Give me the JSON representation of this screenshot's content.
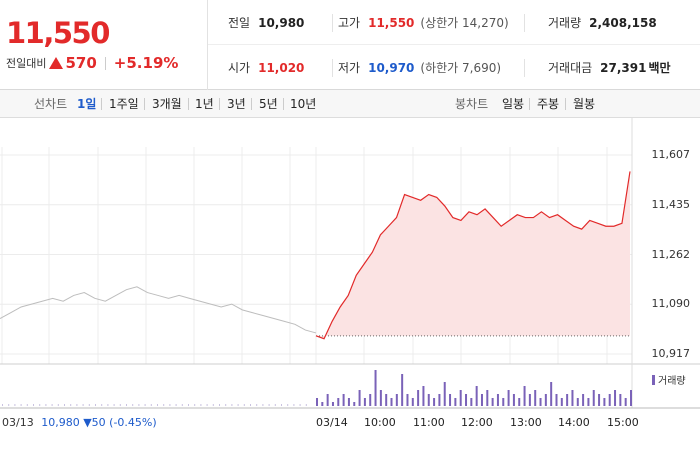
{
  "quote": {
    "price": "11,550",
    "change_label": "전일대비",
    "change": "570",
    "change_pct": "+5.19%",
    "prev_close_label": "전일",
    "prev_close": "10,980",
    "high_label": "고가",
    "high": "11,550",
    "upper_limit": "(상한가 14,270)",
    "volume_label": "거래량",
    "volume": "2,408,158",
    "open_label": "시가",
    "open": "11,020",
    "low_label": "저가",
    "low": "10,970",
    "lower_limit": "(하한가 7,690)",
    "value_label": "거래대금",
    "value": "27,391",
    "value_unit": "백만"
  },
  "toolbar": {
    "line_label": "선차트",
    "ranges": [
      "1일",
      "1주일",
      "3개월",
      "1년",
      "3년",
      "5년",
      "10년"
    ],
    "active_range": "1일",
    "candle_label": "봉차트",
    "candles": [
      "일봉",
      "주봉",
      "월봉"
    ]
  },
  "colors": {
    "up": "#e22a2a",
    "down": "#1e5bcb",
    "prev_line": "#bdbdbd",
    "fill": "#fbe3e3",
    "volume": "#7a62b8"
  },
  "chart_data": {
    "type": "line",
    "y_ticks": [
      "11,607",
      "11,435",
      "11,262",
      "11,090",
      "10,917"
    ],
    "ylim": [
      10917,
      11607
    ],
    "x_ticks": [
      "03/14",
      "10:00",
      "11:00",
      "12:00",
      "13:00",
      "14:00",
      "15:00"
    ],
    "baseline": 10980,
    "legend": "거래량",
    "prev_day_note": {
      "date": "03/13",
      "close": "10,980",
      "change": "▼50",
      "pct": "(-0.45%)"
    },
    "prev_day_series": {
      "values": [
        11040,
        11060,
        11080,
        11090,
        11100,
        11110,
        11100,
        11120,
        11130,
        11110,
        11100,
        11120,
        11140,
        11150,
        11130,
        11120,
        11110,
        11120,
        11110,
        11100,
        11090,
        11080,
        11090,
        11070,
        11060,
        11050,
        11040,
        11030,
        11020,
        11000,
        10990
      ]
    },
    "today_series": {
      "name": "",
      "values": [
        10980,
        10970,
        11030,
        11080,
        11120,
        11190,
        11230,
        11270,
        11330,
        11360,
        11390,
        11470,
        11460,
        11450,
        11470,
        11460,
        11430,
        11390,
        11380,
        11410,
        11400,
        11420,
        11390,
        11360,
        11380,
        11400,
        11390,
        11390,
        11410,
        11390,
        11400,
        11380,
        11360,
        11350,
        11380,
        11370,
        11360,
        11360,
        11370,
        11550
      ]
    },
    "volume": [
      2,
      1,
      3,
      1,
      2,
      3,
      2,
      1,
      4,
      2,
      3,
      9,
      4,
      3,
      2,
      3,
      8,
      3,
      2,
      4,
      5,
      3,
      2,
      3,
      6,
      3,
      2,
      4,
      3,
      2,
      5,
      3,
      4,
      2,
      3,
      2,
      4,
      3,
      2,
      5,
      3,
      4,
      2,
      3,
      6,
      3,
      2,
      3,
      4,
      2,
      3,
      2,
      4,
      3,
      2,
      3,
      4,
      3,
      2,
      4
    ]
  }
}
